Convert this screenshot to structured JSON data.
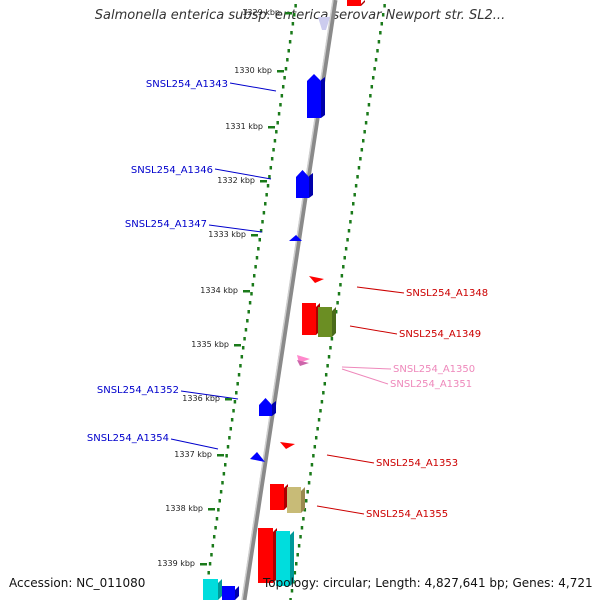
{
  "title": "Salmonella enterica subsp. enterica serovar Newport str. SL2...",
  "accession": "Accession: NC_011080",
  "topology": "Topology: circular; Length: 4,827,641 bp; Genes: 4,721",
  "ticks": [
    "1329 kbp",
    "1330 kbp",
    "1331 kbp",
    "1332 kbp",
    "1333 kbp",
    "1334 kbp",
    "1335 kbp",
    "1336 kbp",
    "1337 kbp",
    "1338 kbp",
    "1339 kbp"
  ],
  "genes": [
    {
      "label": "SNSL254_A1343",
      "color": "#0000cc"
    },
    {
      "label": "SNSL254_A1346",
      "color": "#0000cc"
    },
    {
      "label": "SNSL254_A1347",
      "color": "#0000cc"
    },
    {
      "label": "SNSL254_A1348",
      "color": "#cc0000"
    },
    {
      "label": "SNSL254_A1349",
      "color": "#cc0000"
    },
    {
      "label": "SNSL254_A1350",
      "color": "#ee88bb"
    },
    {
      "label": "SNSL254_A1351",
      "color": "#ee88bb"
    },
    {
      "label": "SNSL254_A1352",
      "color": "#0000cc"
    },
    {
      "label": "SNSL254_A1353",
      "color": "#cc0000"
    },
    {
      "label": "SNSL254_A1354",
      "color": "#0000cc"
    },
    {
      "label": "SNSL254_A1355",
      "color": "#cc0000"
    }
  ],
  "colors": {
    "backbone": "#888888",
    "ticks": "#1a7a1a",
    "forward": "#0000ff",
    "reverse": "#ff0000",
    "olive": "#6b8e23",
    "khaki": "#c8bb77",
    "cyan": "#00dddd",
    "pink": "#ff88cc"
  }
}
